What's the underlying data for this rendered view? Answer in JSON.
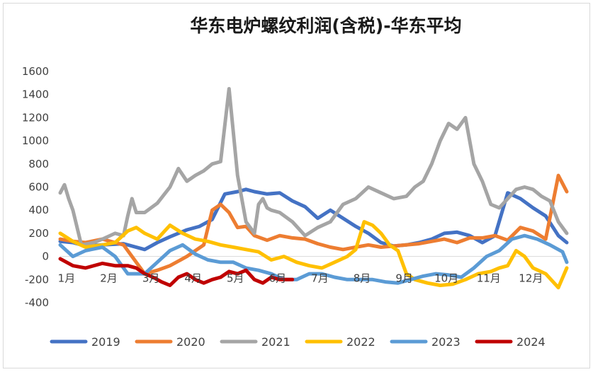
{
  "chart_data": {
    "type": "line",
    "title": "华东电炉螺纹利润(含税)-华东平均",
    "xlabel": "",
    "ylabel": "",
    "ylim": [
      -400,
      1600
    ],
    "yticks": [
      -400,
      -200,
      0,
      200,
      400,
      600,
      800,
      1000,
      1200,
      1400,
      1600
    ],
    "xticks": [
      "1月",
      "2月",
      "3月",
      "4月",
      "5月",
      "6月",
      "7月",
      "8月",
      "9月",
      "10月",
      "11月",
      "12月"
    ],
    "xlim": [
      0,
      12
    ],
    "grid": false,
    "legend": "bottom",
    "series": [
      {
        "name": "2019",
        "color": "#4472c4",
        "x": [
          0,
          0.3,
          0.6,
          1,
          1.5,
          2,
          2.3,
          2.6,
          3,
          3.3,
          3.6,
          3.9,
          4.2,
          4.4,
          4.6,
          4.9,
          5.2,
          5.5,
          5.8,
          6.1,
          6.4,
          6.7,
          7,
          7.3,
          7.6,
          7.9,
          8.2,
          8.5,
          8.8,
          9.1,
          9.4,
          9.7,
          10,
          10.3,
          10.6,
          10.9,
          11.2,
          11.5,
          11.8,
          12
        ],
        "values": [
          130,
          120,
          90,
          100,
          110,
          60,
          120,
          170,
          230,
          260,
          320,
          540,
          560,
          580,
          560,
          540,
          550,
          480,
          430,
          330,
          400,
          330,
          260,
          200,
          120,
          90,
          100,
          120,
          150,
          200,
          210,
          180,
          120,
          180,
          550,
          500,
          420,
          350,
          180,
          120
        ]
      },
      {
        "name": "2020",
        "color": "#ed7d31",
        "x": [
          0,
          0.3,
          0.6,
          1,
          1.5,
          2,
          2.3,
          2.6,
          3,
          3.2,
          3.4,
          3.6,
          3.8,
          4,
          4.2,
          4.4,
          4.6,
          4.9,
          5.2,
          5.5,
          5.8,
          6.1,
          6.4,
          6.7,
          7,
          7.3,
          7.6,
          7.9,
          8.2,
          8.5,
          8.8,
          9.1,
          9.4,
          9.7,
          10,
          10.3,
          10.6,
          10.9,
          11.2,
          11.5,
          11.8,
          12
        ],
        "values": [
          150,
          130,
          120,
          150,
          100,
          -150,
          -120,
          -80,
          0,
          50,
          100,
          400,
          450,
          380,
          250,
          260,
          180,
          140,
          180,
          160,
          150,
          110,
          80,
          60,
          80,
          100,
          80,
          90,
          100,
          110,
          130,
          150,
          120,
          160,
          160,
          180,
          140,
          250,
          220,
          150,
          700,
          560
        ]
      },
      {
        "name": "2021",
        "color": "#a5a5a5",
        "x": [
          0,
          0.1,
          0.2,
          0.3,
          0.5,
          0.8,
          1,
          1.3,
          1.5,
          1.6,
          1.7,
          1.8,
          2,
          2.3,
          2.6,
          2.8,
          3,
          3.2,
          3.4,
          3.6,
          3.8,
          4,
          4.2,
          4.4,
          4.6,
          4.7,
          4.8,
          4.9,
          5,
          5.2,
          5.5,
          5.8,
          6.1,
          6.4,
          6.7,
          7,
          7.3,
          7.6,
          7.9,
          8.2,
          8.4,
          8.6,
          8.8,
          9,
          9.2,
          9.4,
          9.6,
          9.8,
          10,
          10.2,
          10.4,
          10.6,
          10.8,
          11,
          11.2,
          11.4,
          11.6,
          11.8,
          12
        ],
        "values": [
          550,
          620,
          500,
          400,
          100,
          120,
          150,
          200,
          180,
          350,
          500,
          380,
          380,
          460,
          600,
          760,
          650,
          700,
          740,
          800,
          820,
          1450,
          700,
          300,
          200,
          450,
          500,
          420,
          400,
          380,
          300,
          180,
          250,
          300,
          450,
          500,
          600,
          550,
          500,
          520,
          600,
          650,
          800,
          1000,
          1150,
          1100,
          1200,
          800,
          650,
          450,
          420,
          500,
          580,
          600,
          580,
          520,
          480,
          300,
          200
        ]
      },
      {
        "name": "2022",
        "color": "#ffc000",
        "x": [
          0,
          0.3,
          0.6,
          1,
          1.3,
          1.6,
          1.8,
          2,
          2.3,
          2.6,
          2.9,
          3.2,
          3.5,
          3.8,
          4.1,
          4.4,
          4.7,
          5,
          5.3,
          5.6,
          5.9,
          6.2,
          6.5,
          6.8,
          7,
          7.2,
          7.4,
          7.6,
          7.8,
          8,
          8.2,
          8.4,
          8.7,
          9,
          9.3,
          9.6,
          9.9,
          10.2,
          10.4,
          10.6,
          10.8,
          11,
          11.2,
          11.5,
          11.8,
          12
        ],
        "values": [
          200,
          130,
          80,
          100,
          120,
          220,
          250,
          200,
          150,
          270,
          200,
          150,
          130,
          100,
          80,
          60,
          40,
          -30,
          0,
          -50,
          -80,
          -100,
          -50,
          0,
          60,
          300,
          270,
          200,
          100,
          50,
          -150,
          -200,
          -230,
          -250,
          -240,
          -200,
          -150,
          -130,
          -100,
          -80,
          50,
          0,
          -100,
          -150,
          -270,
          -100
        ]
      },
      {
        "name": "2023",
        "color": "#5b9bd5",
        "x": [
          0,
          0.3,
          0.6,
          1,
          1.3,
          1.6,
          2,
          2.3,
          2.6,
          2.9,
          3.2,
          3.5,
          3.8,
          4.1,
          4.4,
          4.7,
          5,
          5.3,
          5.6,
          5.9,
          6.2,
          6.5,
          6.8,
          7.1,
          7.4,
          7.7,
          8,
          8.3,
          8.6,
          8.9,
          9.2,
          9.5,
          9.8,
          10.1,
          10.4,
          10.7,
          11,
          11.3,
          11.6,
          11.9,
          12
        ],
        "values": [
          100,
          0,
          50,
          80,
          0,
          -150,
          -150,
          -50,
          50,
          100,
          20,
          -30,
          -50,
          -50,
          -100,
          -120,
          -150,
          -200,
          -200,
          -150,
          -150,
          -180,
          -200,
          -200,
          -200,
          -220,
          -230,
          -200,
          -170,
          -150,
          -160,
          -180,
          -100,
          0,
          50,
          150,
          180,
          150,
          100,
          40,
          -50
        ]
      },
      {
        "name": "2024",
        "color": "#c00000",
        "x": [
          0,
          0.3,
          0.6,
          1,
          1.3,
          1.6,
          1.8,
          2,
          2.2,
          2.4,
          2.6,
          2.8,
          3,
          3.2,
          3.4,
          3.6,
          3.8,
          4,
          4.2,
          4.4,
          4.6,
          4.8,
          5,
          5.2,
          5.5
        ],
        "values": [
          -20,
          -80,
          -100,
          -60,
          -80,
          -80,
          -100,
          -150,
          -180,
          -220,
          -250,
          -180,
          -150,
          -200,
          -230,
          -200,
          -180,
          -130,
          -150,
          -120,
          -200,
          -230,
          -180,
          -200,
          -200
        ]
      }
    ]
  }
}
